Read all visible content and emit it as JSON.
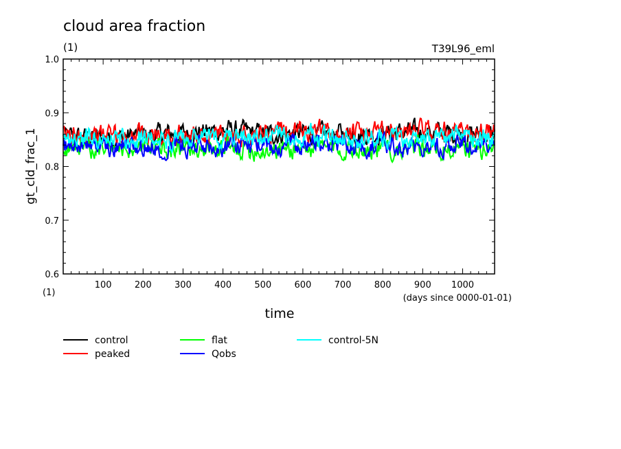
{
  "chart_data": {
    "type": "line",
    "title": "cloud area fraction",
    "title_unit": "(1)",
    "subtitle_right": "T39L96_eml",
    "ylabel": "gt_cld_frac_1",
    "y_unit": "(1)",
    "xlabel": "time",
    "x_unit": "(days since 0000-01-01)",
    "xlim": [
      0,
      1080
    ],
    "ylim": [
      0.6,
      1.0
    ],
    "x_ticks": [
      100,
      200,
      300,
      400,
      500,
      600,
      700,
      800,
      900,
      1000
    ],
    "x_tick_labels": [
      "100",
      "200",
      "300",
      "400",
      "500",
      "600",
      "700",
      "800",
      "900",
      "1000"
    ],
    "y_ticks": [
      0.6,
      0.7,
      0.8,
      0.9,
      1.0
    ],
    "y_tick_labels": [
      "0.6",
      "0.7",
      "0.8",
      "0.9",
      "1.0"
    ],
    "grid": false,
    "legend_position": "bottom",
    "series": [
      {
        "name": "control",
        "color": "#000000",
        "x": [
          0,
          60,
          120,
          180,
          240,
          300,
          360,
          420,
          480,
          540,
          600,
          660,
          720,
          780,
          840,
          900,
          960,
          1020,
          1080
        ],
        "y": [
          0.855,
          0.855,
          0.853,
          0.858,
          0.86,
          0.862,
          0.865,
          0.868,
          0.862,
          0.86,
          0.862,
          0.86,
          0.862,
          0.86,
          0.862,
          0.865,
          0.862,
          0.86,
          0.858
        ]
      },
      {
        "name": "peaked",
        "color": "#ff0000",
        "x": [
          0,
          60,
          120,
          180,
          240,
          300,
          360,
          420,
          480,
          540,
          600,
          660,
          720,
          780,
          840,
          900,
          960,
          1020,
          1080
        ],
        "y": [
          0.858,
          0.86,
          0.858,
          0.855,
          0.858,
          0.86,
          0.858,
          0.86,
          0.862,
          0.865,
          0.868,
          0.862,
          0.86,
          0.862,
          0.865,
          0.868,
          0.866,
          0.865,
          0.865
        ]
      },
      {
        "name": "flat",
        "color": "#00ff00",
        "x": [
          0,
          60,
          120,
          180,
          240,
          300,
          360,
          420,
          480,
          540,
          600,
          660,
          720,
          780,
          840,
          900,
          960,
          1020,
          1080
        ],
        "y": [
          0.835,
          0.835,
          0.834,
          0.833,
          0.834,
          0.835,
          0.835,
          0.832,
          0.832,
          0.833,
          0.833,
          0.834,
          0.835,
          0.833,
          0.834,
          0.834,
          0.833,
          0.834,
          0.833
        ]
      },
      {
        "name": "Qobs",
        "color": "#0000ff",
        "x": [
          0,
          60,
          120,
          180,
          240,
          300,
          360,
          420,
          480,
          540,
          600,
          660,
          720,
          780,
          840,
          900,
          960,
          1020,
          1080
        ],
        "y": [
          0.838,
          0.84,
          0.838,
          0.837,
          0.838,
          0.84,
          0.84,
          0.84,
          0.838,
          0.84,
          0.845,
          0.842,
          0.84,
          0.838,
          0.838,
          0.84,
          0.84,
          0.84,
          0.838
        ]
      },
      {
        "name": "control-5N",
        "color": "#00ffff",
        "x": [
          0,
          60,
          120,
          180,
          240,
          300,
          360,
          420,
          480,
          540,
          600,
          660,
          720,
          780,
          840,
          900,
          960,
          1020,
          1080
        ],
        "y": [
          0.85,
          0.852,
          0.853,
          0.852,
          0.85,
          0.852,
          0.855,
          0.85,
          0.852,
          0.858,
          0.86,
          0.855,
          0.852,
          0.853,
          0.85,
          0.852,
          0.855,
          0.855,
          0.85
        ]
      }
    ]
  }
}
